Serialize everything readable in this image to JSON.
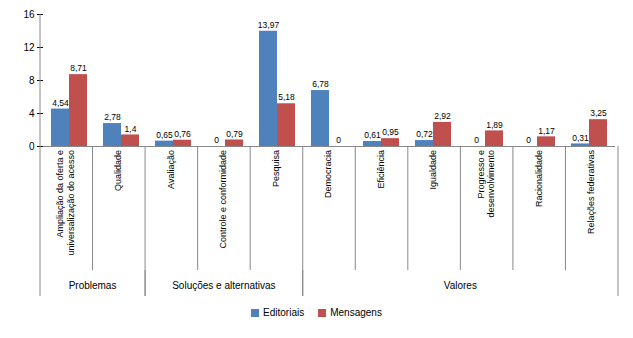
{
  "chart_data": {
    "type": "bar",
    "categories": [
      "Ampliação da oferta e universalização do acesso",
      "Qualidade",
      "Avaliação",
      "Controle e conformidade",
      "Pesquisa",
      "Democracia",
      "Eficiência",
      "Igualdade",
      "Progresso e desenvolvimento",
      "Racionalidade",
      "Relações federativas"
    ],
    "category_groups": [
      "Problemas",
      "Problemas",
      "Soluções e alternativas",
      "Soluções e alternativas",
      "Soluções e alternativas",
      "Valores",
      "Valores",
      "Valores",
      "Valores",
      "Valores",
      "Valores"
    ],
    "series": [
      {
        "name": "Editoriais",
        "color": "#4f81bd",
        "values": [
          4.54,
          2.78,
          0.65,
          0,
          13.97,
          6.78,
          0.61,
          0.72,
          0,
          0,
          0.31
        ],
        "value_labels": [
          "4,54",
          "2,78",
          "0,65",
          "0",
          "13,97",
          "6,78",
          "0,61",
          "0,72",
          "0",
          "0",
          "0,31"
        ]
      },
      {
        "name": "Mensagens",
        "color": "#c0504d",
        "values": [
          8.71,
          1.4,
          0.76,
          0.79,
          5.18,
          0,
          0.95,
          2.92,
          1.89,
          1.17,
          3.25
        ],
        "value_labels": [
          "8,71",
          "1,4",
          "0,76",
          "0,79",
          "5,18",
          "0",
          "0,95",
          "2,92",
          "1,89",
          "1,17",
          "3,25"
        ]
      }
    ],
    "ylim": [
      0,
      16
    ],
    "yticks": [
      0,
      4,
      8,
      12,
      16
    ],
    "grid": false,
    "data_labels": true,
    "legend": "bottom"
  }
}
